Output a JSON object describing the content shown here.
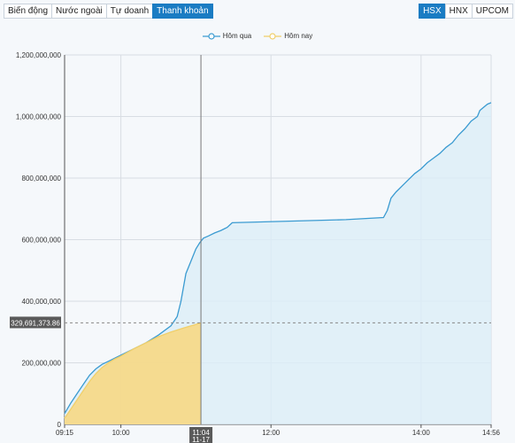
{
  "tabs_left": [
    {
      "label": "Biến động",
      "active": false
    },
    {
      "label": "Nước ngoài",
      "active": false
    },
    {
      "label": "Tự doanh",
      "active": false
    },
    {
      "label": "Thanh khoản",
      "active": true
    }
  ],
  "tabs_right": [
    {
      "label": "HSX",
      "active": true
    },
    {
      "label": "HNX",
      "active": false
    },
    {
      "label": "UPCOM",
      "active": false
    }
  ],
  "colors": {
    "yesterday_line": "#3b9bd1",
    "yesterday_fill": "#dcedf7",
    "today_line": "#f0cf6a",
    "today_fill": "#f5d98a",
    "crosshair_label": "#5a5a5a"
  },
  "crosshair": {
    "time": "11:04",
    "date": "11-17",
    "value_label": "329,691,373.86",
    "value": 329691373.86
  },
  "chart_data": {
    "type": "area",
    "xlabel": "",
    "ylabel": "",
    "x_range": [
      "09:15",
      "14:56"
    ],
    "ylim": [
      0,
      1200000000
    ],
    "x_ticks": [
      "09:15",
      "10:00",
      "12:00",
      "14:00",
      "14:56"
    ],
    "y_ticks": [
      "0",
      "200,000,000",
      "400,000,000",
      "600,000,000",
      "800,000,000",
      "1,000,000,000",
      "1,200,000,000"
    ],
    "y_tick_values": [
      0,
      200000000,
      400000000,
      600000000,
      800000000,
      1000000000,
      1200000000
    ],
    "legend_position": "top-center",
    "grid": true,
    "series": [
      {
        "name": "Hôm qua",
        "points": [
          [
            "09:15",
            35000000
          ],
          [
            "09:20",
            70000000
          ],
          [
            "09:25",
            100000000
          ],
          [
            "09:30",
            130000000
          ],
          [
            "09:35",
            160000000
          ],
          [
            "09:40",
            180000000
          ],
          [
            "09:45",
            195000000
          ],
          [
            "09:50",
            205000000
          ],
          [
            "09:55",
            215000000
          ],
          [
            "10:00",
            225000000
          ],
          [
            "10:10",
            245000000
          ],
          [
            "10:20",
            265000000
          ],
          [
            "10:30",
            290000000
          ],
          [
            "10:40",
            320000000
          ],
          [
            "10:45",
            350000000
          ],
          [
            "10:48",
            400000000
          ],
          [
            "10:52",
            490000000
          ],
          [
            "10:56",
            530000000
          ],
          [
            "11:00",
            570000000
          ],
          [
            "11:03",
            590000000
          ],
          [
            "11:06",
            605000000
          ],
          [
            "11:10",
            612000000
          ],
          [
            "11:15",
            622000000
          ],
          [
            "11:20",
            630000000
          ],
          [
            "11:25",
            640000000
          ],
          [
            "11:29",
            655000000
          ],
          [
            "13:00",
            665000000
          ],
          [
            "13:30",
            672000000
          ],
          [
            "13:33",
            695000000
          ],
          [
            "13:36",
            735000000
          ],
          [
            "13:40",
            755000000
          ],
          [
            "13:45",
            775000000
          ],
          [
            "13:50",
            795000000
          ],
          [
            "13:55",
            815000000
          ],
          [
            "14:00",
            830000000
          ],
          [
            "14:05",
            850000000
          ],
          [
            "14:10",
            865000000
          ],
          [
            "14:15",
            880000000
          ],
          [
            "14:20",
            900000000
          ],
          [
            "14:25",
            915000000
          ],
          [
            "14:30",
            940000000
          ],
          [
            "14:35",
            960000000
          ],
          [
            "14:40",
            985000000
          ],
          [
            "14:45",
            1000000000
          ],
          [
            "14:47",
            1020000000
          ],
          [
            "14:50",
            1030000000
          ],
          [
            "14:53",
            1040000000
          ],
          [
            "14:56",
            1045000000
          ]
        ]
      },
      {
        "name": "Hôm nay",
        "points": [
          [
            "09:15",
            20000000
          ],
          [
            "09:20",
            50000000
          ],
          [
            "09:25",
            80000000
          ],
          [
            "09:30",
            110000000
          ],
          [
            "09:35",
            140000000
          ],
          [
            "09:40",
            165000000
          ],
          [
            "09:45",
            185000000
          ],
          [
            "09:50",
            200000000
          ],
          [
            "09:55",
            212000000
          ],
          [
            "10:00",
            222000000
          ],
          [
            "10:10",
            245000000
          ],
          [
            "10:20",
            265000000
          ],
          [
            "10:30",
            285000000
          ],
          [
            "10:40",
            300000000
          ],
          [
            "10:50",
            313000000
          ],
          [
            "11:00",
            325000000
          ],
          [
            "11:04",
            329691373.86
          ]
        ]
      }
    ]
  }
}
